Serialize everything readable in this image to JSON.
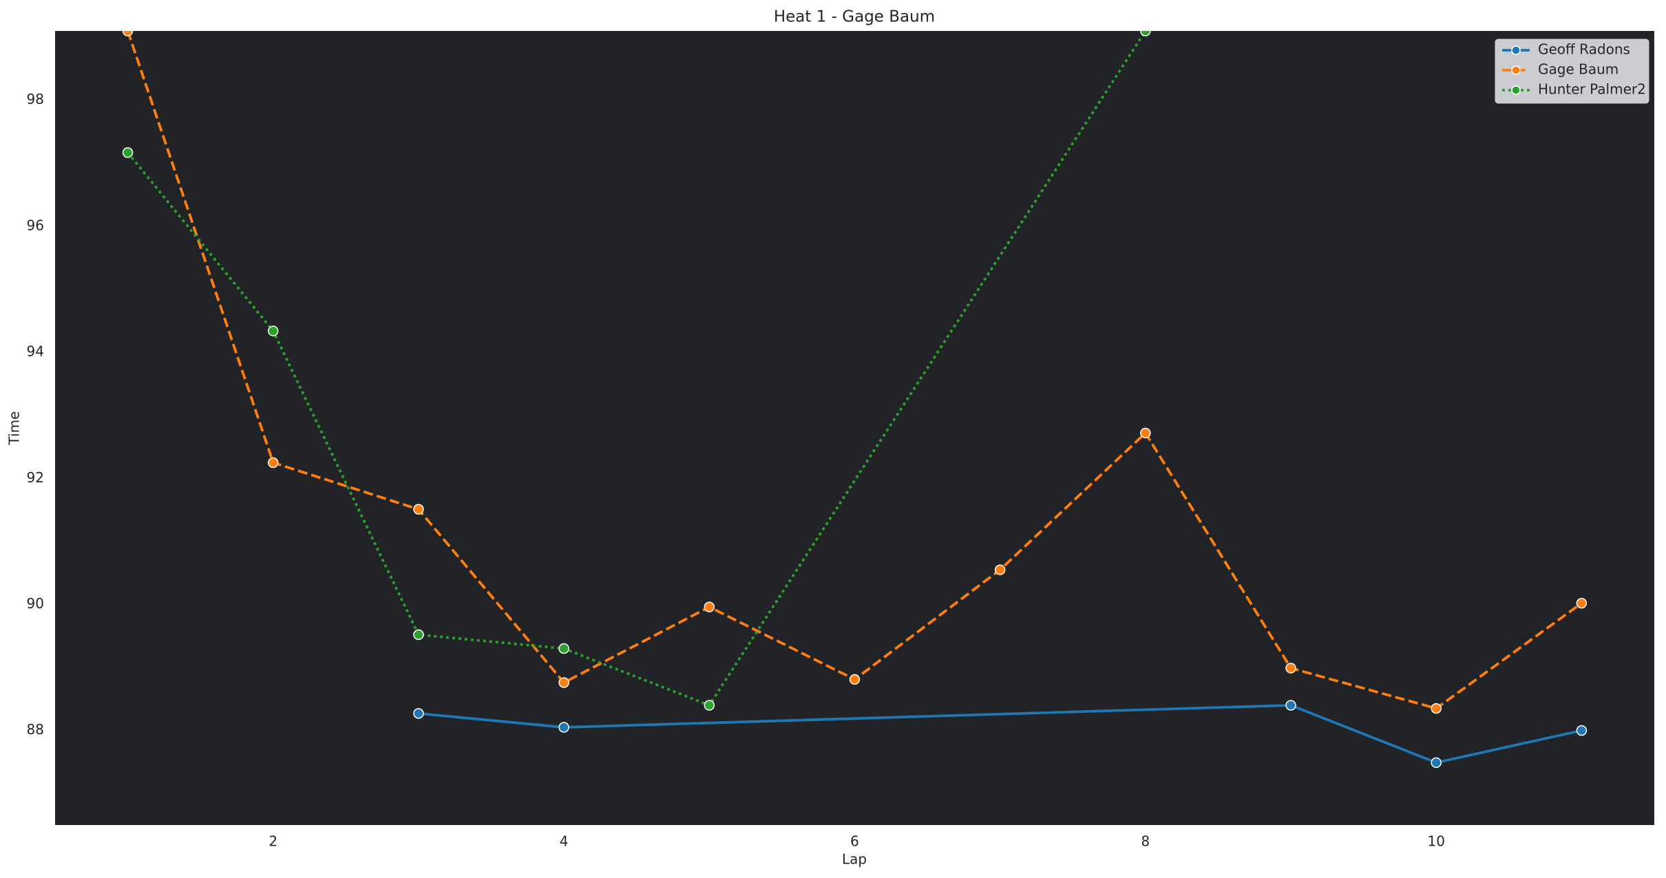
{
  "chart_data": {
    "type": "line",
    "title": "Heat 1 - Gage Baum",
    "x_label": "Lap",
    "y_label": "Time",
    "xlim": [
      0.5,
      11.5
    ],
    "xticks": [
      2,
      4,
      6,
      8,
      10
    ],
    "ylim": [
      86.5,
      99.1
    ],
    "yticks": [
      88,
      90,
      92,
      94,
      96,
      98
    ],
    "legend": "upper right",
    "series": [
      {
        "name": "Geoff Radons",
        "color": "#1f77b4",
        "linestyle": "solid",
        "x": [
          3,
          4,
          9,
          10,
          11
        ],
        "values": [
          88.27,
          88.05,
          88.4,
          87.49,
          88.0
        ]
      },
      {
        "name": "Gage Baum",
        "color": "#ff7f0e",
        "linestyle": "dashed",
        "x": [
          1,
          2,
          3,
          4,
          5,
          6,
          7,
          8,
          9,
          10,
          11
        ],
        "values": [
          99.1,
          92.25,
          91.51,
          88.76,
          89.96,
          88.81,
          90.55,
          92.72,
          88.99,
          88.35,
          90.02
        ]
      },
      {
        "name": "Hunter Palmer2",
        "color": "#2ca02c",
        "linestyle": "dotted",
        "x": [
          1,
          2,
          3,
          4,
          5,
          8
        ],
        "values": [
          97.17,
          94.34,
          89.52,
          89.3,
          88.4,
          99.1
        ]
      }
    ]
  }
}
